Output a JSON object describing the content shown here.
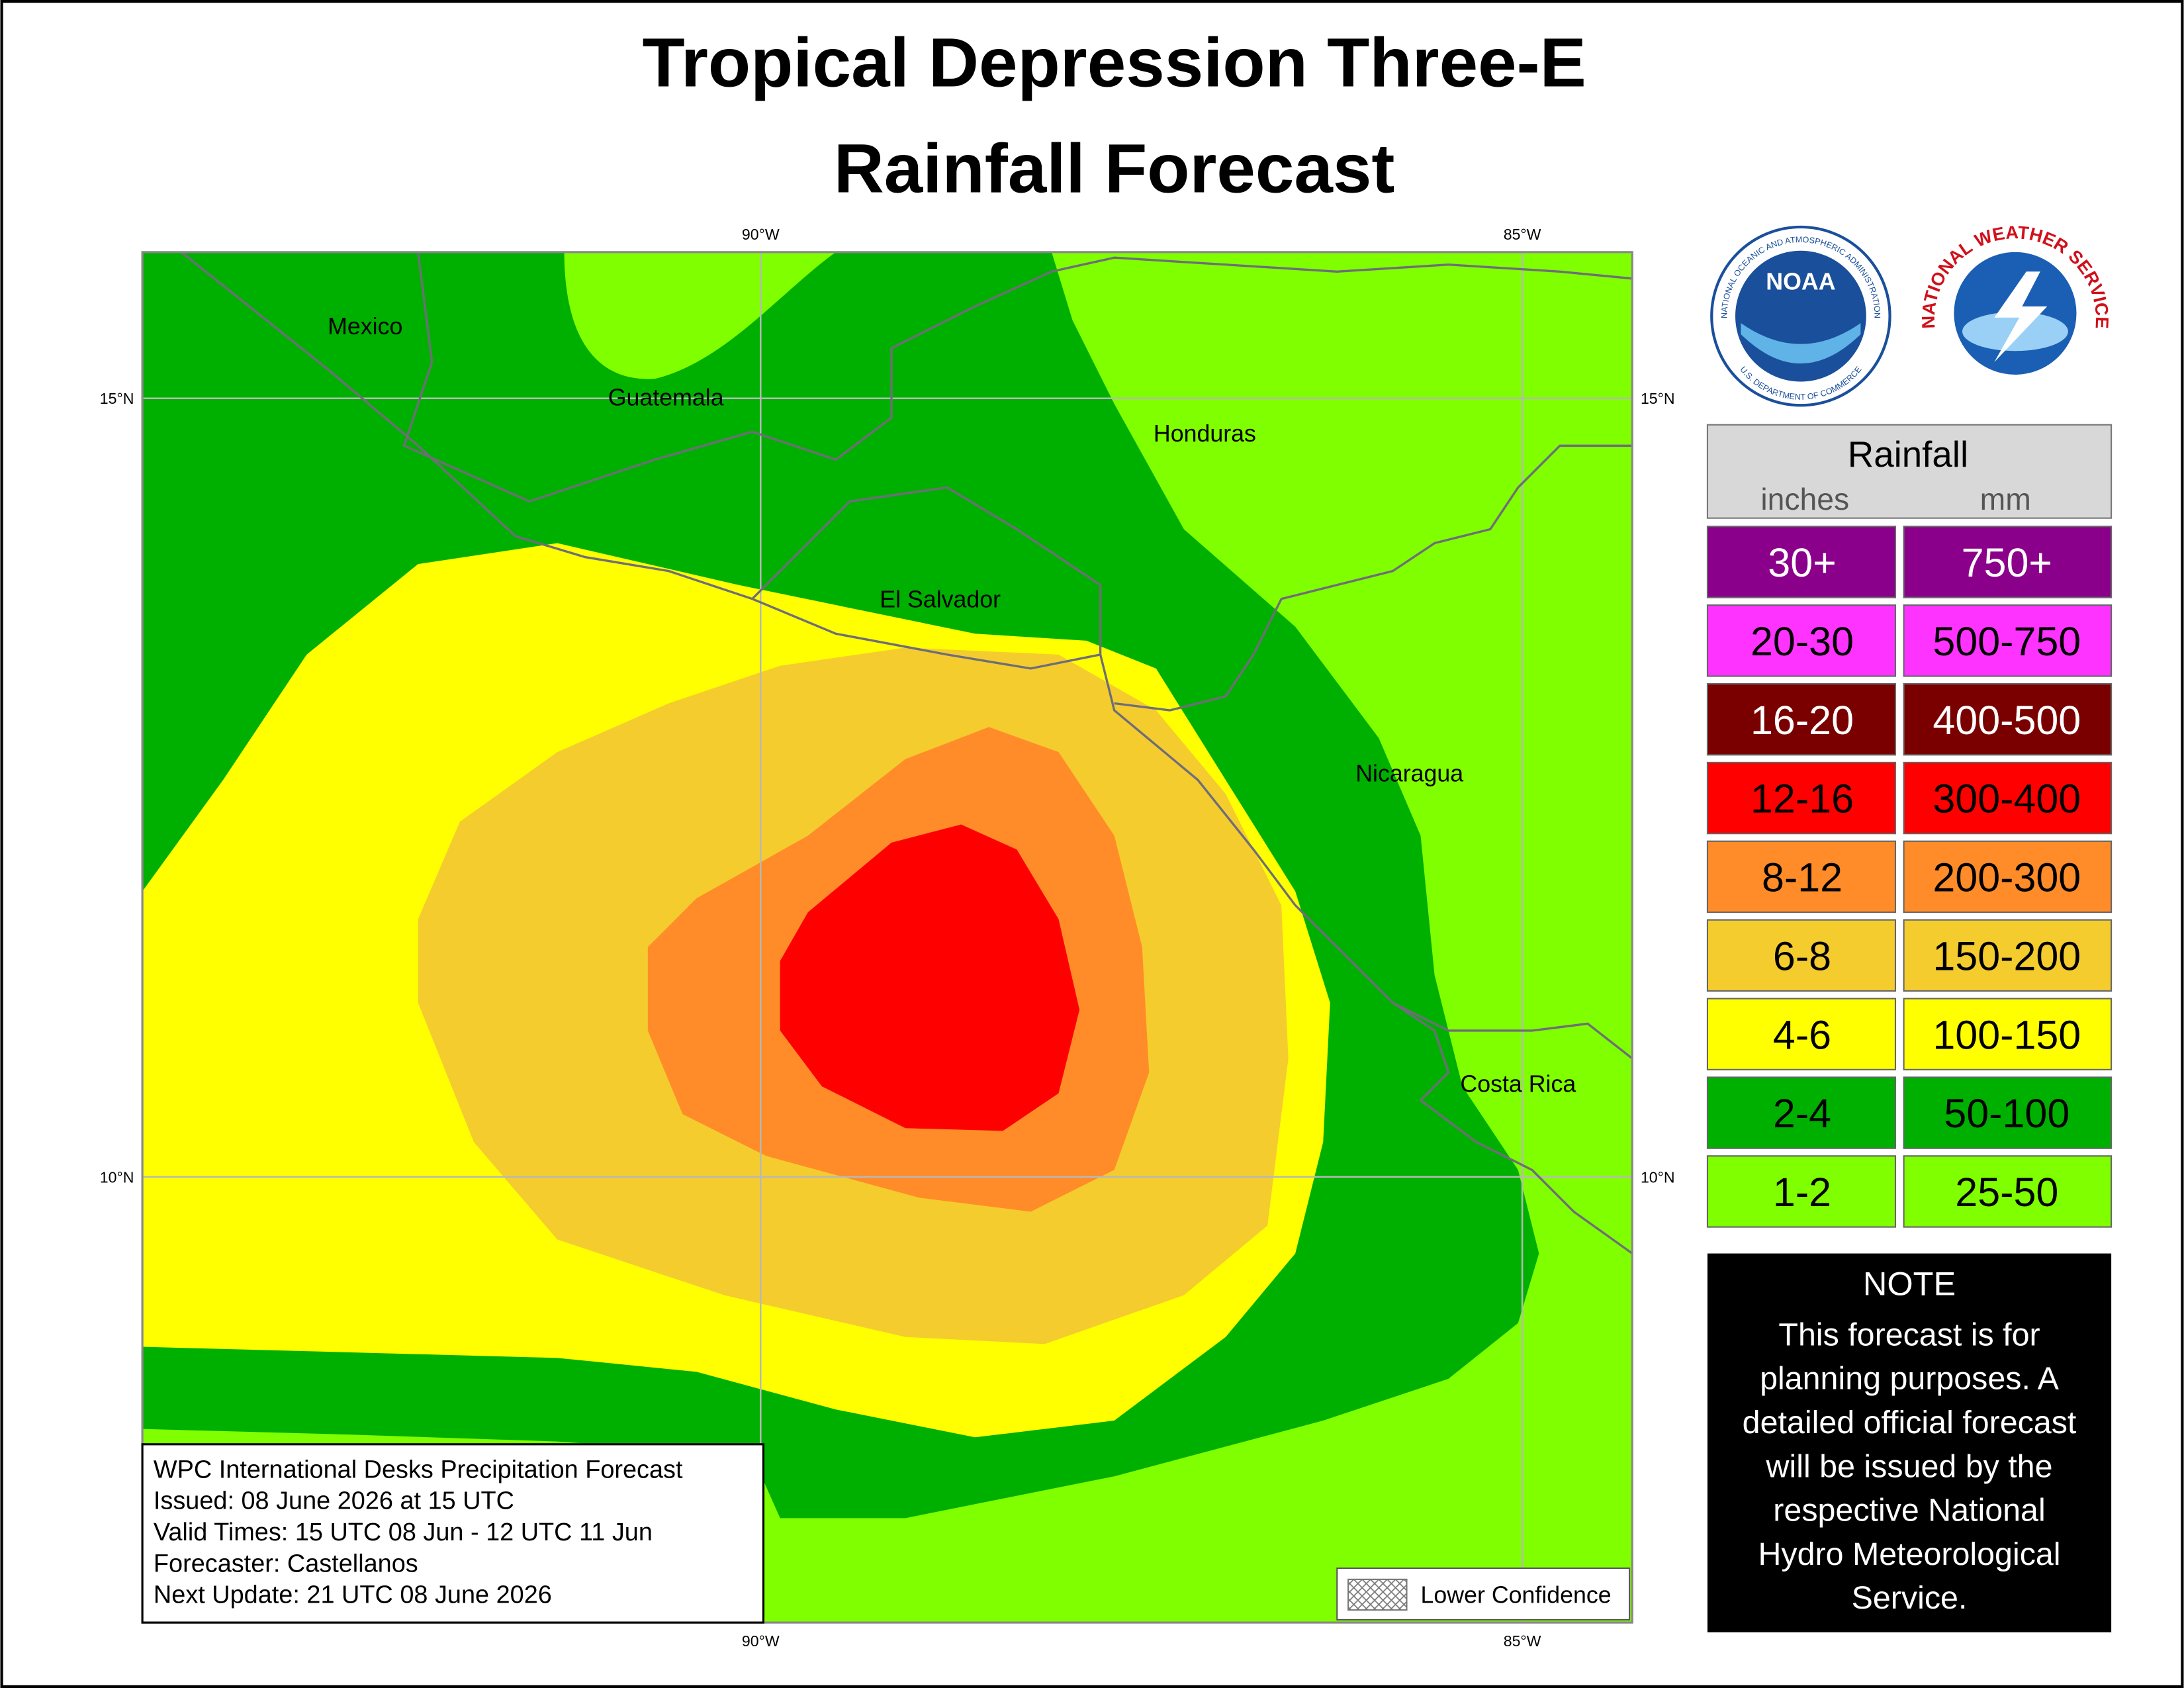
{
  "header": {
    "title_lines": [
      "Tropical Depression Three-E",
      "Rainfall Forecast"
    ]
  },
  "map": {
    "lon_labels": [
      "90°W",
      "85°W"
    ],
    "lat_labels": [
      "15°N",
      "10°N"
    ],
    "places": [
      "Mexico",
      "Guatemala",
      "Honduras",
      "El Salvador",
      "Nicaragua",
      "Costa Rica"
    ],
    "info_lines": [
      "WPC International Desks Precipitation Forecast",
      "Issued: 08 June 2026 at 15 UTC",
      "Valid Times: 15 UTC 08 Jun - 12 UTC 11 Jun",
      "Forecaster: Castellanos",
      "Next Update: 21 UTC 08 June 2026"
    ],
    "lower_confidence": "Lower Confidence"
  },
  "logos": {
    "noaa": "NOAA",
    "noaa_ring": "NATIONAL OCEANIC AND ATMOSPHERIC ADMINISTRATION",
    "noaa_ring_bottom": "U.S. DEPARTMENT OF COMMERCE",
    "nws_ring": "NATIONAL WEATHER SERVICE"
  },
  "legend": {
    "title": "Rainfall",
    "col_inches": "inches",
    "col_mm": "mm",
    "rows": [
      {
        "inches": "30+",
        "mm": "750+",
        "color": "#8b008b",
        "text_color": "#ffffff"
      },
      {
        "inches": "20-30",
        "mm": "500-750",
        "color": "#ff33ff",
        "text_color": "#000000"
      },
      {
        "inches": "16-20",
        "mm": "400-500",
        "color": "#7a0000",
        "text_color": "#ffffff"
      },
      {
        "inches": "12-16",
        "mm": "300-400",
        "color": "#ff0000",
        "text_color": "#000000"
      },
      {
        "inches": "8-12",
        "mm": "200-300",
        "color": "#ff8c28",
        "text_color": "#000000"
      },
      {
        "inches": "6-8",
        "mm": "150-200",
        "color": "#f5cc2e",
        "text_color": "#000000"
      },
      {
        "inches": "4-6",
        "mm": "100-150",
        "color": "#ffff00",
        "text_color": "#000000"
      },
      {
        "inches": "2-4",
        "mm": "50-100",
        "color": "#00b000",
        "text_color": "#000000"
      },
      {
        "inches": "1-2",
        "mm": "25-50",
        "color": "#7fff00",
        "text_color": "#000000"
      }
    ]
  },
  "note": {
    "title": "NOTE",
    "lines": [
      "This forecast is for",
      "planning purposes. A",
      "detailed official forecast",
      "will be issued by the",
      "respective National",
      "Hydro Meteorological",
      "Service."
    ]
  }
}
